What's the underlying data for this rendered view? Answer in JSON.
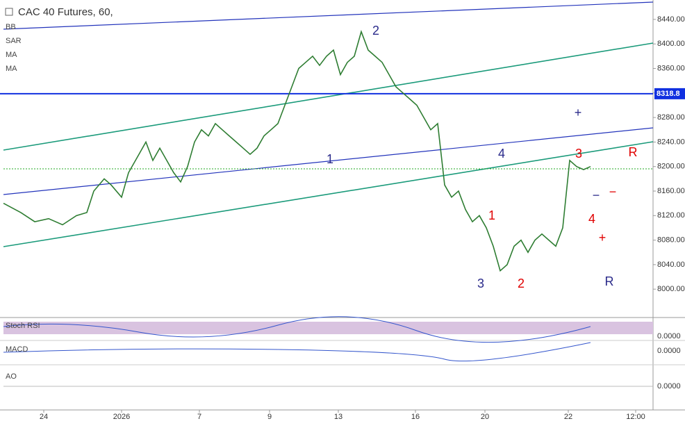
{
  "chart_data": {
    "type": "line",
    "title": "CAC 40 Futures, 60,",
    "indicators": [
      "BB",
      "SAR",
      "MA",
      "MA"
    ],
    "panels": [
      "Stoch RSI",
      "MACD",
      "AO"
    ],
    "panel_ticks": [
      "0.0000",
      "0.0000",
      "0.0000"
    ],
    "x": [
      0.5,
      3,
      5,
      7,
      9,
      11,
      12.5,
      13.5,
      15,
      16,
      17.5,
      18.5,
      20,
      21,
      22,
      23,
      24,
      25,
      26,
      27,
      28,
      29,
      30,
      31,
      32,
      33,
      34,
      35,
      36,
      37,
      38,
      39,
      40,
      41,
      42,
      43,
      44,
      45,
      46,
      47,
      48,
      49,
      50,
      51,
      52,
      53,
      54,
      55,
      56,
      57,
      58,
      59,
      60,
      61,
      62,
      63,
      64,
      65,
      66,
      67,
      68,
      69,
      70,
      71,
      72,
      73,
      74,
      75,
      76,
      77,
      78,
      79,
      80,
      81,
      82,
      83,
      84,
      85
    ],
    "series": [
      {
        "name": "CAC 40 Futures",
        "color": "#2e7d32",
        "values": [
          8140,
          8125,
          8110,
          8115,
          8105,
          8120,
          8125,
          8160,
          8180,
          8170,
          8150,
          8190,
          8220,
          8240,
          8210,
          8230,
          8210,
          8190,
          8175,
          8200,
          8240,
          8260,
          8250,
          8270,
          8260,
          8250,
          8240,
          8230,
          8220,
          8230,
          8250,
          8260,
          8270,
          8300,
          8330,
          8360,
          8370,
          8380,
          8365,
          8380,
          8390,
          8350,
          8370,
          8380,
          8420,
          8390,
          8380,
          8370,
          8350,
          8330,
          8320,
          8310,
          8300,
          8280,
          8260,
          8270,
          8170,
          8150,
          8160,
          8130,
          8110,
          8120,
          8100,
          8070,
          8030,
          8040,
          8070,
          8080,
          8060,
          8080,
          8090,
          8080,
          8070,
          8100,
          8210,
          8200,
          8195,
          8200
        ]
      }
    ],
    "xlim": [
      0,
      94
    ],
    "ylim": [
      7956,
      8466
    ],
    "xticks": [
      {
        "value": 6.3,
        "label": "24"
      },
      {
        "value": 17.5,
        "label": "2026"
      },
      {
        "value": 28.7,
        "label": "7"
      },
      {
        "value": 38.8,
        "label": "9"
      },
      {
        "value": 48.7,
        "label": "13"
      },
      {
        "value": 59.8,
        "label": "16"
      },
      {
        "value": 69.8,
        "label": "20"
      },
      {
        "value": 81.8,
        "label": "22"
      },
      {
        "value": 91.5,
        "label": "12:00"
      }
    ],
    "yticks": [
      {
        "value": 8000,
        "label": "8000.00"
      },
      {
        "value": 8040,
        "label": "8040.00"
      },
      {
        "value": 8080,
        "label": "8080.00"
      },
      {
        "value": 8120,
        "label": "8120.00"
      },
      {
        "value": 8160,
        "label": "8160.00"
      },
      {
        "value": 8200,
        "label": "8200.00"
      },
      {
        "value": 8240,
        "label": "8240.00"
      },
      {
        "value": 8280,
        "label": "8280.00"
      },
      {
        "value": 8320,
        "label": "8320.00"
      },
      {
        "value": 8360,
        "label": "8360.00"
      },
      {
        "value": 8400,
        "label": "8400.00"
      },
      {
        "value": 8440,
        "label": "8440.00"
      }
    ],
    "price_line": 8318.8,
    "annotations": [
      "1",
      "2",
      "3",
      "4",
      "1",
      "2",
      "3",
      "4",
      "R",
      "R",
      "+",
      "+",
      "−",
      "−"
    ]
  }
}
